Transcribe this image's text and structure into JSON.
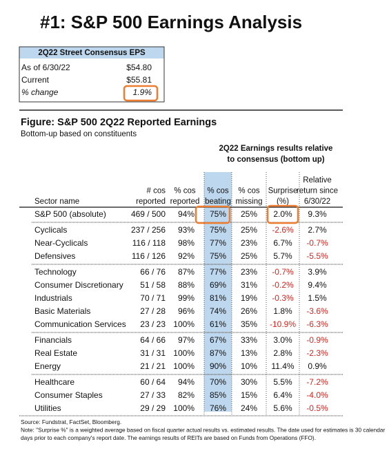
{
  "title": "#1: S&P 500 Earnings Analysis",
  "eps_box": {
    "header": "2Q22 Street Consensus EPS",
    "rows": [
      [
        "As of 6/30/22",
        "$54.80"
      ],
      [
        "Current",
        "$55.81"
      ],
      [
        "% change",
        "1.9%"
      ]
    ]
  },
  "figure": {
    "title": "Figure: S&P 500 2Q22 Reported Earnings",
    "subtitle": "Bottom-up based on constituents",
    "group_header": [
      "2Q22 Earnings results relative",
      "to consensus (bottom up)"
    ],
    "columns": [
      [
        "Sector name"
      ],
      [
        "# cos",
        "reported"
      ],
      [
        "% cos",
        "reported"
      ],
      [
        "% cos",
        "beating"
      ],
      [
        "% cos",
        "missing"
      ],
      [
        "Surprise",
        "(%)"
      ],
      [
        "Relative",
        "return since",
        "6/30/22"
      ]
    ],
    "groups": [
      [
        [
          "S&P 500 (absolute)",
          "469 / 500",
          "94%",
          "75%",
          "25%",
          "2.0%",
          "9.3%"
        ]
      ],
      [
        [
          "Cyclicals",
          "237 / 256",
          "93%",
          "75%",
          "25%",
          "-2.6%",
          "2.7%"
        ],
        [
          "Near-Cyclicals",
          "116 / 118",
          "98%",
          "77%",
          "23%",
          "6.7%",
          "-0.7%"
        ],
        [
          "Defensives",
          "116 / 126",
          "92%",
          "75%",
          "25%",
          "5.7%",
          "-5.5%"
        ]
      ],
      [
        [
          "Technology",
          "66 / 76",
          "87%",
          "77%",
          "23%",
          "-0.7%",
          "3.9%"
        ],
        [
          "Consumer Discretionary",
          "51 / 58",
          "88%",
          "69%",
          "31%",
          "-0.2%",
          "9.4%"
        ],
        [
          "Industrials",
          "70 / 71",
          "99%",
          "81%",
          "19%",
          "-0.3%",
          "1.5%"
        ],
        [
          "Basic Materials",
          "27 / 28",
          "96%",
          "74%",
          "26%",
          "1.8%",
          "-3.6%"
        ],
        [
          "Communication Services",
          "23 / 23",
          "100%",
          "61%",
          "35%",
          "-10.9%",
          "-6.3%"
        ]
      ],
      [
        [
          "Financials",
          "64 / 66",
          "97%",
          "67%",
          "33%",
          "3.0%",
          "-0.9%"
        ],
        [
          "Real Estate",
          "31 / 31",
          "100%",
          "87%",
          "13%",
          "2.8%",
          "-2.3%"
        ],
        [
          "Energy",
          "21 / 21",
          "100%",
          "90%",
          "10%",
          "11.4%",
          "0.9%"
        ]
      ],
      [
        [
          "Healthcare",
          "60 / 64",
          "94%",
          "70%",
          "30%",
          "5.5%",
          "-7.2%"
        ],
        [
          "Consumer Staples",
          "27 / 33",
          "82%",
          "85%",
          "15%",
          "6.4%",
          "-4.0%"
        ],
        [
          "Utilities",
          "29 / 29",
          "100%",
          "76%",
          "24%",
          "5.6%",
          "-0.5%"
        ]
      ]
    ],
    "footnotes": [
      "Source: Fundstrat, FactSet, Bloomberg.",
      "Note: \"Surprise %\" is a weighted average based on fiscal quarter actual results vs. estimated results.  The date used for estimates is 30 calendar",
      "days prior to each company's report date. The earnings results of REITs are based on Funds from Operations (FFO)."
    ]
  }
}
